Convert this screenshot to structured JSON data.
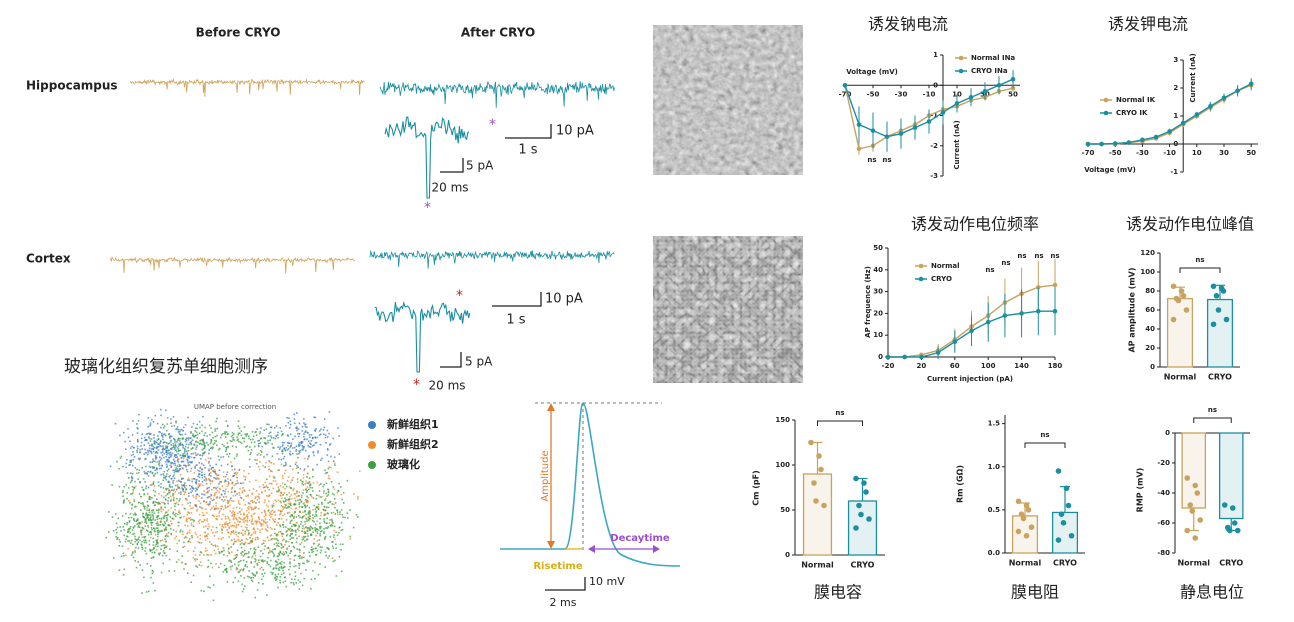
{
  "labels": {
    "before": "Before CRYO",
    "after": "After CRYO",
    "hippocampus": "Hippocampus",
    "cortex": "Cortex",
    "markers": [
      "*",
      "*",
      "*",
      "*"
    ]
  },
  "scale_bars": {
    "hippocampus": {
      "amp": "10 pA",
      "time": "1 s",
      "inset_amp": "5 pA",
      "inset_time": "20 ms"
    },
    "cortex": {
      "amp": "10 pA",
      "time": "1 s",
      "inset_amp": "5 pA",
      "inset_time": "20 ms"
    }
  },
  "sequencing": {
    "title": "玻璃化组织复苏单细胞测序",
    "umap_title": "UMAP before correction",
    "legend": [
      "新鲜组织1",
      "新鲜组织2",
      "玻璃化"
    ]
  },
  "event": {
    "amplitude": "Amplitude",
    "risetime": "Risetime",
    "decaytime": "Decaytime",
    "amp_scale": "10 mV",
    "time_scale": "2 ms"
  },
  "chart_data": [
    {
      "type": "line",
      "title": "诱发钠电流",
      "x_label": "Voltage (mV)",
      "y_label": "Current (nA)",
      "x": [
        -70,
        -60,
        -50,
        -40,
        -30,
        -20,
        -10,
        0,
        10,
        20,
        30,
        40,
        50
      ],
      "xlim": [
        -70,
        55
      ],
      "xticks": [
        -70,
        -50,
        -30,
        -10,
        10,
        30,
        50
      ],
      "ylim": [
        -3,
        1
      ],
      "yticks": [
        -3,
        -2,
        -1,
        0,
        1
      ],
      "series": [
        {
          "name": "Normal INa",
          "color": "#c9a25e",
          "values": [
            0,
            -2.1,
            -2.0,
            -1.7,
            -1.5,
            -1.3,
            -1.0,
            -0.8,
            -0.7,
            -0.5,
            -0.4,
            -0.2,
            -0.1
          ],
          "errors": [
            0,
            0.2,
            0.2,
            0.2,
            0.2,
            0.2,
            0.2,
            0.2,
            0.1,
            0.1,
            0.1,
            0.1,
            0.1
          ]
        },
        {
          "name": "CRYO INa",
          "color": "#1a8fa0",
          "values": [
            0,
            -1.3,
            -1.5,
            -1.7,
            -1.6,
            -1.4,
            -1.2,
            -0.9,
            -0.6,
            -0.4,
            -0.2,
            0,
            0.2
          ],
          "errors": [
            0,
            0.6,
            0.6,
            0.5,
            0.5,
            0.4,
            0.4,
            0.4,
            0.3,
            0.3,
            0.3,
            0.3,
            0.3
          ]
        }
      ],
      "annotations": [
        "ns",
        "ns"
      ]
    },
    {
      "type": "line",
      "title": "诱发钾电流",
      "x_label": "Voltage (mV)",
      "y_label": "Current (nA)",
      "x": [
        -70,
        -60,
        -50,
        -40,
        -30,
        -20,
        -10,
        0,
        10,
        20,
        30,
        40,
        50
      ],
      "xlim": [
        -70,
        55
      ],
      "xticks": [
        -70,
        -50,
        -30,
        -10,
        10,
        30,
        50
      ],
      "ylim": [
        -1,
        3
      ],
      "yticks": [
        -1,
        0,
        1,
        2,
        3
      ],
      "series": [
        {
          "name": "Normal IK",
          "color": "#c9a25e",
          "values": [
            0,
            0,
            0,
            0.05,
            0.1,
            0.2,
            0.4,
            0.7,
            1.0,
            1.3,
            1.6,
            1.9,
            2.1
          ],
          "errors": [
            0,
            0,
            0,
            0,
            0.05,
            0.05,
            0.1,
            0.1,
            0.1,
            0.15,
            0.15,
            0.2,
            0.2
          ]
        },
        {
          "name": "CRYO IK",
          "color": "#1a8fa0",
          "values": [
            0,
            0,
            0.02,
            0.05,
            0.15,
            0.25,
            0.45,
            0.75,
            1.05,
            1.35,
            1.65,
            1.9,
            2.15
          ],
          "errors": [
            0,
            0,
            0,
            0,
            0.05,
            0.05,
            0.1,
            0.1,
            0.1,
            0.15,
            0.15,
            0.2,
            0.2
          ]
        }
      ]
    },
    {
      "type": "line",
      "title": "诱发动作电位频率",
      "x_label": "Current injection (pA)",
      "y_label": "AP frequence (Hz)",
      "x": [
        -20,
        0,
        20,
        40,
        60,
        80,
        100,
        120,
        140,
        160,
        180
      ],
      "xlim": [
        -20,
        180
      ],
      "xticks": [
        -20,
        20,
        60,
        100,
        140,
        180
      ],
      "ylim": [
        0,
        50
      ],
      "yticks": [
        0,
        10,
        20,
        30,
        40,
        50
      ],
      "series": [
        {
          "name": "Normal",
          "color": "#c9a25e",
          "values": [
            0,
            0,
            1,
            3,
            8,
            14,
            19,
            25,
            29,
            32,
            33
          ],
          "errors": [
            0,
            0,
            1,
            3,
            5,
            7,
            9,
            11,
            12,
            12,
            12
          ]
        },
        {
          "name": "CRYO",
          "color": "#1a8fa0",
          "values": [
            0,
            0,
            0,
            2,
            7,
            12,
            16,
            19,
            20,
            21,
            21
          ],
          "errors": [
            0,
            0,
            1,
            3,
            5,
            7,
            9,
            10,
            11,
            11,
            11
          ]
        }
      ],
      "annotations": [
        "ns",
        "ns",
        "ns",
        "ns",
        "ns"
      ]
    },
    {
      "type": "bar",
      "title": "诱发动作电位峰值",
      "y_label": "AP amplitude (mV)",
      "categories": [
        "Normal",
        "CRYO"
      ],
      "colors": [
        "#c9a25e",
        "#1a8fa0"
      ],
      "values": [
        72,
        71
      ],
      "errors": [
        12,
        15
      ],
      "points": [
        [
          85,
          80,
          75,
          72,
          70,
          60,
          50
        ],
        [
          85,
          83,
          80,
          75,
          60,
          50,
          45
        ]
      ],
      "ylim": [
        0,
        120
      ],
      "yticks": [
        0,
        20,
        40,
        60,
        80,
        100,
        120
      ],
      "annotation": "ns"
    },
    {
      "type": "bar",
      "title": "膜电容",
      "y_label": "Cm (pF)",
      "categories": [
        "Normal",
        "CRYO"
      ],
      "colors": [
        "#c9a25e",
        "#1a8fa0"
      ],
      "values": [
        90,
        60
      ],
      "errors": [
        35,
        25
      ],
      "points": [
        [
          125,
          110,
          95,
          80,
          60,
          55
        ],
        [
          85,
          80,
          70,
          55,
          45,
          40,
          30
        ]
      ],
      "ylim": [
        0,
        150
      ],
      "yticks": [
        0,
        50,
        100,
        150
      ],
      "annotation": "ns"
    },
    {
      "type": "bar",
      "title": "膜电阻",
      "y_label": "Rm (GΩ)",
      "categories": [
        "Normal",
        "CRYO"
      ],
      "colors": [
        "#c9a25e",
        "#1a8fa0"
      ],
      "values": [
        0.43,
        0.47
      ],
      "errors": [
        0.15,
        0.3
      ],
      "points": [
        [
          0.6,
          0.55,
          0.5,
          0.45,
          0.4,
          0.3,
          0.25,
          0.2
        ],
        [
          0.95,
          0.75,
          0.55,
          0.45,
          0.35,
          0.2,
          0.15
        ]
      ],
      "ylim": [
        0,
        1.6
      ],
      "yticks": [
        {
          "value": 0,
          "label": "0.0"
        },
        0.5,
        {
          "value": 1,
          "label": "1.0"
        },
        1.5
      ],
      "annotation": "ns"
    },
    {
      "type": "bar",
      "title": "静息电位",
      "y_label": "RMP (mV)",
      "categories": [
        "Normal",
        "CRYO"
      ],
      "colors": [
        "#c9a25e",
        "#1a8fa0"
      ],
      "values": [
        -50,
        -57
      ],
      "errors": [
        15,
        8
      ],
      "points": [
        [
          -30,
          -35,
          -40,
          -48,
          -52,
          -58,
          -65,
          -70
        ],
        [
          -48,
          -50,
          -60,
          -63,
          -65,
          -65
        ]
      ],
      "ylim": [
        -80,
        0
      ],
      "yticks": [
        -80,
        -60,
        -40,
        -20,
        0
      ],
      "annotation": "ns"
    }
  ]
}
